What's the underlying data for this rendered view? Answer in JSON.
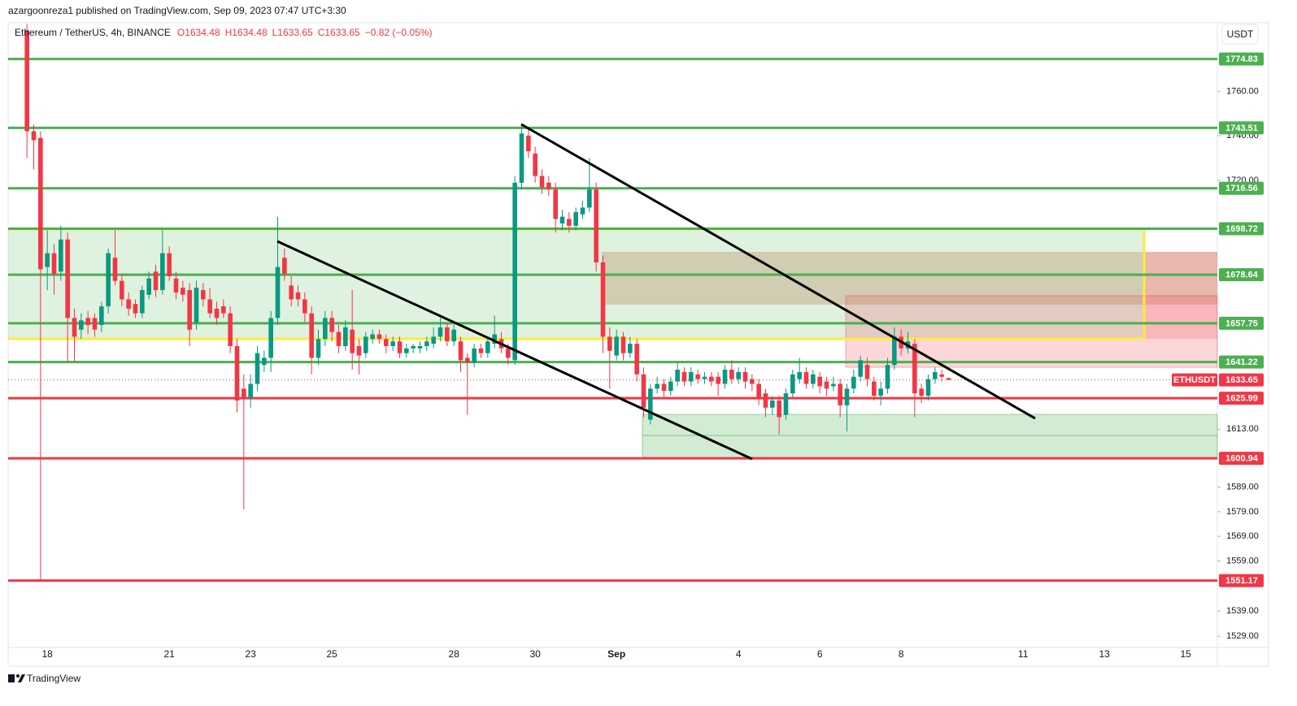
{
  "header": {
    "publisher": "azargoonreza1 published on TradingView.com, Sep 09, 2023 07:47 UTC+3:30",
    "symbol": "Ethereum / TetherUS, 4h, BINANCE",
    "legend": [
      "O1634.48",
      "H1634.48",
      "L1633.65",
      "C1633.65",
      "−0.82 (−0.05%)"
    ],
    "currency_button": "USDT"
  },
  "footer": {
    "brand": "TradingView"
  },
  "chart_data": {
    "type": "candlestick",
    "log_scale": true,
    "up_color": "#089981",
    "down_color": "#f23645",
    "symbol_tag": "ETHUSDT",
    "last_price": 1633.65,
    "last_color": "#f23645",
    "ylim": [
      1524.6,
      1791.5
    ],
    "yticks": [
      {
        "value": 1760,
        "label": "1760.00"
      },
      {
        "value": 1740,
        "label": "1740.00"
      },
      {
        "value": 1720,
        "label": "1720.00"
      },
      {
        "value": 1613,
        "label": "1613.00"
      },
      {
        "value": 1589,
        "label": "1589.00"
      },
      {
        "value": 1579,
        "label": "1579.00"
      },
      {
        "value": 1569,
        "label": "1569.00"
      },
      {
        "value": 1559,
        "label": "1559.00"
      },
      {
        "value": 1539,
        "label": "1539.00"
      },
      {
        "value": 1529,
        "label": "1529.00"
      }
    ],
    "levels": [
      {
        "value": 1774.83,
        "color": "#4caf50"
      },
      {
        "value": 1743.51,
        "color": "#4caf50"
      },
      {
        "value": 1716.56,
        "color": "#4caf50"
      },
      {
        "value": 1698.72,
        "color": "#4caf50"
      },
      {
        "value": 1678.64,
        "color": "#4caf50"
      },
      {
        "value": 1657.75,
        "color": "#4caf50"
      },
      {
        "value": 1641.22,
        "color": "#4caf50"
      },
      {
        "value": 1625.99,
        "color": "#f23645"
      },
      {
        "value": 1600.94,
        "color": "#f23645"
      },
      {
        "value": 1551.17,
        "color": "#f23645"
      }
    ],
    "categories": [
      null,
      null,
      null,
      "18",
      null,
      null,
      null,
      null,
      null,
      null,
      null,
      null,
      null,
      null,
      null,
      null,
      null,
      null,
      null,
      null,
      null,
      "21",
      null,
      null,
      null,
      null,
      null,
      null,
      null,
      null,
      null,
      null,
      null,
      "23",
      null,
      null,
      null,
      null,
      null,
      null,
      null,
      null,
      null,
      null,
      null,
      "25",
      null,
      null,
      null,
      null,
      null,
      null,
      null,
      null,
      null,
      null,
      null,
      null,
      null,
      null,
      null,
      null,
      null,
      "28",
      null,
      null,
      null,
      null,
      null,
      null,
      null,
      null,
      null,
      null,
      null,
      "30",
      null,
      null,
      null,
      null,
      null,
      null,
      null,
      null,
      null,
      null,
      null,
      "Sep",
      null,
      null,
      null,
      null,
      null,
      null,
      null,
      null,
      null,
      null,
      null,
      null,
      null,
      null,
      null,
      null,
      null,
      "4",
      null,
      null,
      null,
      null,
      null,
      null,
      null,
      null,
      null,
      null,
      null,
      "6",
      null,
      null,
      null,
      null,
      null,
      null,
      null,
      null,
      null,
      null,
      null,
      "8",
      null,
      null,
      null,
      null,
      null,
      null,
      null,
      null,
      null,
      null,
      null,
      null,
      null,
      null,
      null,
      null,
      null,
      "11",
      null,
      null,
      null,
      null,
      null,
      null,
      null,
      null,
      null,
      null,
      null,
      "13",
      null,
      null,
      null,
      null,
      null,
      null,
      null,
      null,
      null,
      null,
      null,
      "15",
      null,
      null,
      null,
      null,
      null
    ],
    "ohlc": [
      [
        1788,
        1791,
        1730,
        1742
      ],
      [
        1742,
        1745,
        1725,
        1738
      ],
      [
        1739,
        1742,
        1551,
        1681
      ],
      [
        1682,
        1698,
        1672,
        1688
      ],
      [
        1688,
        1692,
        1670,
        1679
      ],
      [
        1680,
        1700,
        1676,
        1694
      ],
      [
        1694,
        1697,
        1641,
        1660
      ],
      [
        1660,
        1664,
        1641,
        1652
      ],
      [
        1655,
        1662,
        1651,
        1659
      ],
      [
        1660,
        1663,
        1653,
        1657
      ],
      [
        1660,
        1662,
        1652,
        1655
      ],
      [
        1657,
        1667,
        1654,
        1665
      ],
      [
        1665,
        1690,
        1662,
        1688
      ],
      [
        1686,
        1698,
        1674,
        1676
      ],
      [
        1676,
        1679,
        1665,
        1668
      ],
      [
        1668,
        1671,
        1661,
        1664
      ],
      [
        1666,
        1668,
        1660,
        1662
      ],
      [
        1662,
        1674,
        1660,
        1672
      ],
      [
        1670,
        1680,
        1668,
        1677
      ],
      [
        1680,
        1683,
        1669,
        1672
      ],
      [
        1672,
        1698,
        1670,
        1688
      ],
      [
        1688,
        1691,
        1676,
        1678
      ],
      [
        1677,
        1680,
        1668,
        1671
      ],
      [
        1673,
        1676,
        1667,
        1670
      ],
      [
        1672,
        1675,
        1648,
        1655
      ],
      [
        1658,
        1676,
        1655,
        1673
      ],
      [
        1672,
        1675,
        1665,
        1668
      ],
      [
        1668,
        1673,
        1660,
        1662
      ],
      [
        1664,
        1667,
        1657,
        1660
      ],
      [
        1665,
        1668,
        1660,
        1662
      ],
      [
        1662,
        1665,
        1645,
        1648
      ],
      [
        1648,
        1651,
        1620,
        1625
      ],
      [
        1630,
        1636,
        1580,
        1626
      ],
      [
        1626,
        1636,
        1622,
        1632
      ],
      [
        1632,
        1648,
        1629,
        1645
      ],
      [
        1640,
        1646,
        1637,
        1643
      ],
      [
        1643,
        1663,
        1637,
        1660
      ],
      [
        1660,
        1704,
        1657,
        1682
      ],
      [
        1686,
        1690,
        1676,
        1679
      ],
      [
        1674,
        1678,
        1665,
        1668
      ],
      [
        1671,
        1674,
        1665,
        1668
      ],
      [
        1668,
        1671,
        1658,
        1662
      ],
      [
        1662,
        1665,
        1636,
        1643
      ],
      [
        1643,
        1655,
        1640,
        1651
      ],
      [
        1651,
        1663,
        1648,
        1660
      ],
      [
        1660,
        1663,
        1650,
        1654
      ],
      [
        1654,
        1657,
        1645,
        1648
      ],
      [
        1648,
        1659,
        1646,
        1656
      ],
      [
        1655,
        1672,
        1638,
        1645
      ],
      [
        1648,
        1651,
        1636,
        1644
      ],
      [
        1645,
        1654,
        1643,
        1652
      ],
      [
        1651,
        1655,
        1649,
        1653
      ],
      [
        1653,
        1655,
        1649,
        1651
      ],
      [
        1651,
        1653,
        1645,
        1648
      ],
      [
        1648,
        1652,
        1646,
        1650
      ],
      [
        1650,
        1652,
        1643,
        1645
      ],
      [
        1645,
        1649,
        1643,
        1647
      ],
      [
        1647,
        1649,
        1645,
        1648
      ],
      [
        1647,
        1650,
        1645,
        1648
      ],
      [
        1648,
        1652,
        1646,
        1650
      ],
      [
        1649,
        1656,
        1647,
        1652
      ],
      [
        1652,
        1660,
        1650,
        1656
      ],
      [
        1656,
        1658,
        1648,
        1650
      ],
      [
        1650,
        1657,
        1648,
        1655
      ],
      [
        1650,
        1652,
        1637,
        1642
      ],
      [
        1643,
        1645,
        1619,
        1641
      ],
      [
        1641,
        1649,
        1639,
        1647
      ],
      [
        1647,
        1649,
        1643,
        1645
      ],
      [
        1645,
        1652,
        1643,
        1650
      ],
      [
        1649,
        1661,
        1647,
        1653
      ],
      [
        1651,
        1654,
        1645,
        1647
      ],
      [
        1647,
        1649,
        1640,
        1643
      ],
      [
        1642,
        1722,
        1640,
        1719
      ],
      [
        1719,
        1745,
        1716,
        1741
      ],
      [
        1740,
        1743,
        1730,
        1733
      ],
      [
        1732,
        1735,
        1719,
        1722
      ],
      [
        1722,
        1725,
        1714,
        1717
      ],
      [
        1719,
        1722,
        1713,
        1716
      ],
      [
        1716,
        1719,
        1697,
        1703
      ],
      [
        1701,
        1707,
        1698,
        1704
      ],
      [
        1703,
        1706,
        1697,
        1700
      ],
      [
        1700,
        1708,
        1698,
        1706
      ],
      [
        1705,
        1711,
        1703,
        1708
      ],
      [
        1708,
        1730,
        1706,
        1716
      ],
      [
        1716,
        1719,
        1680,
        1684
      ],
      [
        1684,
        1687,
        1645,
        1652
      ],
      [
        1652,
        1656,
        1630,
        1646
      ],
      [
        1644,
        1655,
        1642,
        1652
      ],
      [
        1652,
        1654,
        1642,
        1645
      ],
      [
        1645,
        1652,
        1643,
        1649
      ],
      [
        1649,
        1651,
        1633,
        1636
      ],
      [
        1636,
        1639,
        1618,
        1622
      ],
      [
        1617,
        1632,
        1615,
        1630
      ],
      [
        1630,
        1635,
        1628,
        1632
      ],
      [
        1632,
        1634,
        1626,
        1629
      ],
      [
        1629,
        1635,
        1627,
        1633
      ],
      [
        1633,
        1641,
        1631,
        1638
      ],
      [
        1637,
        1639,
        1631,
        1633
      ],
      [
        1633,
        1639,
        1631,
        1637
      ],
      [
        1636,
        1638,
        1632,
        1634
      ],
      [
        1634,
        1637,
        1632,
        1635
      ],
      [
        1635,
        1637,
        1631,
        1633
      ],
      [
        1635,
        1637,
        1627,
        1632
      ],
      [
        1632,
        1640,
        1630,
        1638
      ],
      [
        1638,
        1642,
        1632,
        1634
      ],
      [
        1634,
        1639,
        1632,
        1637
      ],
      [
        1637,
        1639,
        1630,
        1633
      ],
      [
        1634,
        1636,
        1629,
        1632
      ],
      [
        1632,
        1634,
        1623,
        1626
      ],
      [
        1628,
        1630,
        1618,
        1622
      ],
      [
        1622,
        1627,
        1619,
        1625
      ],
      [
        1625,
        1627,
        1611,
        1618
      ],
      [
        1619,
        1630,
        1617,
        1628
      ],
      [
        1628,
        1638,
        1626,
        1636
      ],
      [
        1634,
        1643,
        1632,
        1637
      ],
      [
        1637,
        1639,
        1630,
        1632
      ],
      [
        1632,
        1638,
        1630,
        1636
      ],
      [
        1635,
        1637,
        1628,
        1631
      ],
      [
        1633,
        1635,
        1627,
        1630
      ],
      [
        1631,
        1635,
        1629,
        1632
      ],
      [
        1632,
        1634,
        1618,
        1623
      ],
      [
        1623,
        1632,
        1612,
        1630
      ],
      [
        1630,
        1638,
        1628,
        1635
      ],
      [
        1635,
        1644,
        1633,
        1642
      ],
      [
        1640,
        1643,
        1631,
        1634
      ],
      [
        1633,
        1635,
        1625,
        1627
      ],
      [
        1627,
        1633,
        1623,
        1630
      ],
      [
        1630,
        1643,
        1628,
        1640
      ],
      [
        1640,
        1656,
        1638,
        1652
      ],
      [
        1652,
        1655,
        1644,
        1647
      ],
      [
        1647,
        1654,
        1645,
        1650
      ],
      [
        1649,
        1651,
        1618,
        1628
      ],
      [
        1630,
        1632,
        1624,
        1627
      ],
      [
        1627,
        1636,
        1625,
        1634
      ],
      [
        1634,
        1639,
        1632,
        1637
      ],
      [
        1636,
        1638,
        1633,
        1635
      ],
      [
        1634.48,
        1634.48,
        1633.65,
        1633.65
      ],
      null,
      null,
      null,
      null,
      null,
      null,
      null,
      null,
      null,
      null,
      null,
      null,
      null,
      null,
      null,
      null,
      null,
      null,
      null,
      null,
      null,
      null,
      null,
      null,
      null,
      null,
      null,
      null,
      null,
      null,
      null,
      null,
      null,
      null,
      null,
      null,
      null,
      null,
      null,
      null
    ]
  }
}
